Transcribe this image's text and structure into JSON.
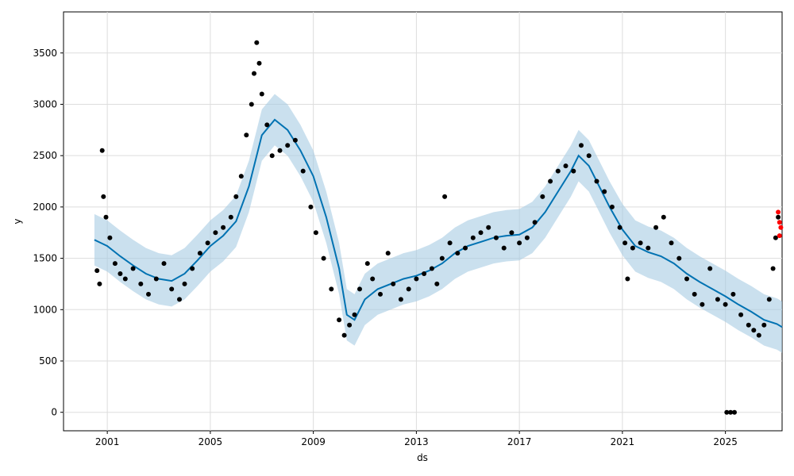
{
  "chart_data": {
    "type": "scatter",
    "title": "",
    "xlabel": "ds",
    "ylabel": "y",
    "xlim": [
      1999.3,
      2027.2
    ],
    "ylim": [
      -180,
      3900
    ],
    "x_ticks": [
      2001,
      2005,
      2009,
      2013,
      2017,
      2021,
      2025
    ],
    "y_ticks": [
      0,
      500,
      1000,
      1500,
      2000,
      2500,
      3000,
      3500
    ],
    "grid": true,
    "legend": "none",
    "colors": {
      "observed": "#000000",
      "forecast": "#0072B2",
      "interval": "#A6CBE3",
      "highlight": "#FF0000",
      "grid": "#DDDDDD"
    },
    "series": [
      {
        "role": "observed",
        "points": [
          [
            2000.6,
            1380
          ],
          [
            2000.7,
            1250
          ],
          [
            2000.8,
            2550
          ],
          [
            2000.85,
            2100
          ],
          [
            2000.95,
            1900
          ],
          [
            2001.1,
            1700
          ],
          [
            2001.3,
            1450
          ],
          [
            2001.5,
            1350
          ],
          [
            2001.7,
            1300
          ],
          [
            2002.0,
            1400
          ],
          [
            2002.3,
            1250
          ],
          [
            2002.6,
            1150
          ],
          [
            2002.9,
            1300
          ],
          [
            2003.2,
            1450
          ],
          [
            2003.5,
            1200
          ],
          [
            2003.8,
            1100
          ],
          [
            2004.0,
            1250
          ],
          [
            2004.3,
            1400
          ],
          [
            2004.6,
            1550
          ],
          [
            2004.9,
            1650
          ],
          [
            2005.2,
            1750
          ],
          [
            2005.5,
            1800
          ],
          [
            2005.8,
            1900
          ],
          [
            2006.0,
            2100
          ],
          [
            2006.2,
            2300
          ],
          [
            2006.4,
            2700
          ],
          [
            2006.6,
            3000
          ],
          [
            2006.7,
            3300
          ],
          [
            2006.8,
            3600
          ],
          [
            2006.9,
            3400
          ],
          [
            2007.0,
            3100
          ],
          [
            2007.2,
            2800
          ],
          [
            2007.4,
            2500
          ],
          [
            2007.7,
            2550
          ],
          [
            2008.0,
            2600
          ],
          [
            2008.3,
            2650
          ],
          [
            2008.6,
            2350
          ],
          [
            2008.9,
            2000
          ],
          [
            2009.1,
            1750
          ],
          [
            2009.4,
            1500
          ],
          [
            2009.7,
            1200
          ],
          [
            2010.0,
            900
          ],
          [
            2010.2,
            750
          ],
          [
            2010.4,
            850
          ],
          [
            2010.6,
            950
          ],
          [
            2010.8,
            1200
          ],
          [
            2011.1,
            1450
          ],
          [
            2011.3,
            1300
          ],
          [
            2011.6,
            1150
          ],
          [
            2011.9,
            1550
          ],
          [
            2012.1,
            1250
          ],
          [
            2012.4,
            1100
          ],
          [
            2012.7,
            1200
          ],
          [
            2013.0,
            1300
          ],
          [
            2013.3,
            1350
          ],
          [
            2013.6,
            1400
          ],
          [
            2013.8,
            1250
          ],
          [
            2014.0,
            1500
          ],
          [
            2014.1,
            2100
          ],
          [
            2014.3,
            1650
          ],
          [
            2014.6,
            1550
          ],
          [
            2014.9,
            1600
          ],
          [
            2015.2,
            1700
          ],
          [
            2015.5,
            1750
          ],
          [
            2015.8,
            1800
          ],
          [
            2016.1,
            1700
          ],
          [
            2016.4,
            1600
          ],
          [
            2016.7,
            1750
          ],
          [
            2017.0,
            1650
          ],
          [
            2017.3,
            1700
          ],
          [
            2017.6,
            1850
          ],
          [
            2017.9,
            2100
          ],
          [
            2018.2,
            2250
          ],
          [
            2018.5,
            2350
          ],
          [
            2018.8,
            2400
          ],
          [
            2019.1,
            2350
          ],
          [
            2019.4,
            2600
          ],
          [
            2019.7,
            2500
          ],
          [
            2020.0,
            2250
          ],
          [
            2020.3,
            2150
          ],
          [
            2020.6,
            2000
          ],
          [
            2020.9,
            1800
          ],
          [
            2021.1,
            1650
          ],
          [
            2021.2,
            1300
          ],
          [
            2021.4,
            1600
          ],
          [
            2021.7,
            1650
          ],
          [
            2022.0,
            1600
          ],
          [
            2022.3,
            1800
          ],
          [
            2022.6,
            1900
          ],
          [
            2022.9,
            1650
          ],
          [
            2023.2,
            1500
          ],
          [
            2023.5,
            1300
          ],
          [
            2023.8,
            1150
          ],
          [
            2024.1,
            1050
          ],
          [
            2024.4,
            1400
          ],
          [
            2024.7,
            1100
          ],
          [
            2025.0,
            1050
          ],
          [
            2025.3,
            1150
          ],
          [
            2025.6,
            950
          ],
          [
            2025.9,
            850
          ],
          [
            2026.1,
            800
          ],
          [
            2026.3,
            750
          ],
          [
            2026.5,
            850
          ],
          [
            2026.7,
            1100
          ],
          [
            2026.85,
            1400
          ],
          [
            2026.95,
            1700
          ],
          [
            2027.05,
            1900
          ],
          [
            2025.05,
            0
          ],
          [
            2025.2,
            0
          ],
          [
            2025.35,
            0
          ]
        ]
      },
      {
        "role": "highlight",
        "points": [
          [
            2027.05,
            1950
          ],
          [
            2027.1,
            1850
          ],
          [
            2027.15,
            1800
          ],
          [
            2027.1,
            1720
          ]
        ]
      },
      {
        "role": "forecast",
        "points": [
          [
            2000.5,
            1680
          ],
          [
            2001.0,
            1620
          ],
          [
            2001.5,
            1520
          ],
          [
            2002.0,
            1430
          ],
          [
            2002.5,
            1350
          ],
          [
            2003.0,
            1300
          ],
          [
            2003.5,
            1280
          ],
          [
            2004.0,
            1350
          ],
          [
            2004.5,
            1480
          ],
          [
            2005.0,
            1620
          ],
          [
            2005.5,
            1720
          ],
          [
            2006.0,
            1860
          ],
          [
            2006.5,
            2200
          ],
          [
            2007.0,
            2700
          ],
          [
            2007.5,
            2850
          ],
          [
            2008.0,
            2750
          ],
          [
            2008.5,
            2550
          ],
          [
            2009.0,
            2300
          ],
          [
            2009.5,
            1900
          ],
          [
            2010.0,
            1400
          ],
          [
            2010.3,
            950
          ],
          [
            2010.6,
            900
          ],
          [
            2011.0,
            1100
          ],
          [
            2011.5,
            1200
          ],
          [
            2012.0,
            1250
          ],
          [
            2012.5,
            1300
          ],
          [
            2013.0,
            1330
          ],
          [
            2013.5,
            1380
          ],
          [
            2014.0,
            1450
          ],
          [
            2014.5,
            1550
          ],
          [
            2015.0,
            1620
          ],
          [
            2015.5,
            1660
          ],
          [
            2016.0,
            1700
          ],
          [
            2016.5,
            1720
          ],
          [
            2017.0,
            1730
          ],
          [
            2017.5,
            1800
          ],
          [
            2018.0,
            1950
          ],
          [
            2018.5,
            2150
          ],
          [
            2019.0,
            2350
          ],
          [
            2019.3,
            2500
          ],
          [
            2019.7,
            2400
          ],
          [
            2020.0,
            2250
          ],
          [
            2020.5,
            2000
          ],
          [
            2021.0,
            1780
          ],
          [
            2021.5,
            1620
          ],
          [
            2022.0,
            1560
          ],
          [
            2022.5,
            1520
          ],
          [
            2023.0,
            1450
          ],
          [
            2023.5,
            1350
          ],
          [
            2024.0,
            1270
          ],
          [
            2024.5,
            1200
          ],
          [
            2025.0,
            1130
          ],
          [
            2025.5,
            1050
          ],
          [
            2026.0,
            980
          ],
          [
            2026.5,
            900
          ],
          [
            2027.0,
            860
          ],
          [
            2027.2,
            830
          ]
        ],
        "interval_width": 250
      }
    ]
  }
}
